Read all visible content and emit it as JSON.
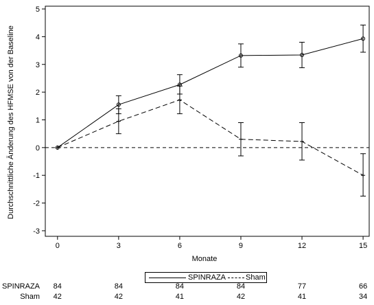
{
  "chart_data": {
    "type": "line",
    "xlabel": "Monate",
    "ylabel": "Durchschnittliche Änderung des HFMSE von der Baseline",
    "x": [
      0,
      3,
      6,
      9,
      12,
      15
    ],
    "xticks": [
      "0",
      "3",
      "6",
      "9",
      "12",
      "15"
    ],
    "yticks": [
      "-3",
      "-2",
      "-1",
      "0",
      "1",
      "2",
      "3",
      "4",
      "5"
    ],
    "xlim": [
      -0.6,
      15.3
    ],
    "ylim": [
      -3.2,
      5.1
    ],
    "reference_line_y": 0,
    "grid": false,
    "legend_position": "bottom",
    "series": [
      {
        "name": "SPINRAZA",
        "style": "solid",
        "marker": "circle",
        "values": [
          0,
          1.55,
          2.27,
          3.32,
          3.34,
          3.93
        ],
        "error_low": [
          0,
          1.22,
          1.93,
          2.9,
          2.88,
          3.44
        ],
        "error_high": [
          0,
          1.87,
          2.63,
          3.74,
          3.8,
          4.42
        ]
      },
      {
        "name": "Sham",
        "style": "dashed",
        "marker": "plus",
        "values": [
          0,
          0.95,
          1.72,
          0.3,
          0.22,
          -1.0
        ],
        "error_low": [
          0,
          0.5,
          1.22,
          -0.3,
          -0.45,
          -1.75
        ],
        "error_high": [
          0,
          1.4,
          2.22,
          0.9,
          0.9,
          -0.22
        ]
      }
    ]
  },
  "legend": {
    "spinraza": "SPINRAZA",
    "sham": "Sham"
  },
  "at_risk": {
    "spinraza": {
      "label": "SPINRAZA",
      "values": [
        "84",
        "84",
        "84",
        "84",
        "77",
        "66"
      ]
    },
    "sham": {
      "label": "Sham",
      "values": [
        "42",
        "42",
        "41",
        "42",
        "41",
        "34"
      ]
    }
  }
}
